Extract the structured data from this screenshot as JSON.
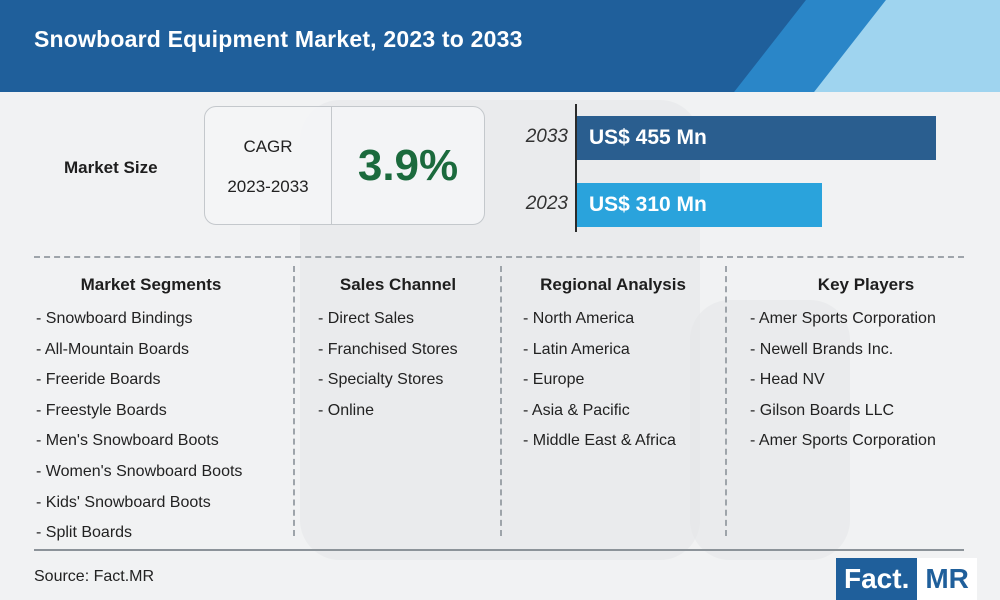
{
  "header": {
    "title": "Snowboard Equipment Market, 2023 to 2033"
  },
  "market_size": {
    "label": "Market Size"
  },
  "cagr": {
    "label_line1": "CAGR",
    "label_line2": "2023-2033",
    "value": "3.9%"
  },
  "colors": {
    "header": "#1f5f9b",
    "bar_2033": "#2a5e8f",
    "bar_2023": "#2aa3dc",
    "cagr": "#1b6a3d"
  },
  "chart_data": {
    "type": "bar",
    "orientation": "horizontal",
    "categories": [
      "2033",
      "2023"
    ],
    "values": [
      455,
      310
    ],
    "value_labels": [
      "US$ 455 Mn",
      "US$ 310 Mn"
    ],
    "unit": "US$ Mn"
  },
  "columns": [
    {
      "header": "Market Segments",
      "items": [
        "- Snowboard Bindings",
        "- All-Mountain Boards",
        "- Freeride Boards",
        "- Freestyle Boards",
        "- Men's Snowboard Boots",
        "- Women's Snowboard Boots",
        "- Kids' Snowboard Boots",
        "- Split Boards"
      ]
    },
    {
      "header": "Sales Channel",
      "items": [
        "- Direct Sales",
        "- Franchised Stores",
        "- Specialty Stores",
        "- Online"
      ]
    },
    {
      "header": "Regional Analysis",
      "items": [
        "- North America",
        "- Latin America",
        "- Europe",
        "- Asia & Pacific",
        "- Middle East & Africa"
      ]
    },
    {
      "header": "Key Players",
      "items": [
        "- Amer Sports Corporation",
        "- Newell Brands Inc.",
        "- Head NV",
        "- Gilson Boards LLC",
        "- Amer Sports Corporation"
      ]
    }
  ],
  "source": "Source: Fact.MR",
  "logo": {
    "part1": "Fact.",
    "part2": "MR"
  }
}
